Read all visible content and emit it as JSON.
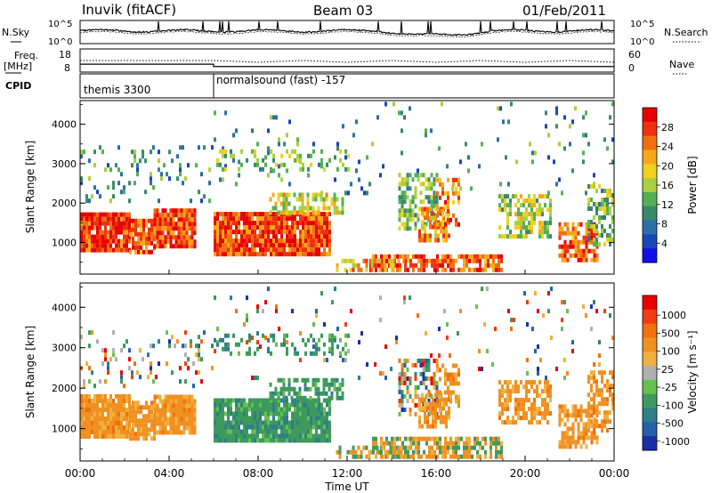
{
  "header": {
    "station": "Inuvik (fitACF)",
    "beam": "Beam 03",
    "date": "01/Feb/2011"
  },
  "side_labels": {
    "nsky": "N.Sky",
    "freq": "Freq.",
    "mhz": "[MHz]",
    "cpid": "CPID",
    "nsearch": "N.Search",
    "nave": "Nave"
  },
  "cpid_labels": [
    {
      "label": "themis 3300",
      "start_hour": 0
    },
    {
      "label": "normalsound (fast) -157",
      "start_hour": 6
    }
  ],
  "chart_data": [
    {
      "type": "line",
      "name": "noise",
      "y_ticks_left": [
        "10^5",
        "10^0"
      ],
      "y_ticks_right": [
        "10^5",
        "10^0"
      ],
      "series": [
        {
          "name": "N.Sky",
          "style": "solid"
        },
        {
          "name": "N.Search",
          "style": "dotted"
        }
      ]
    },
    {
      "type": "line",
      "name": "frequency",
      "y_ticks_left": [
        18,
        8
      ],
      "y_ticks_right": [
        60,
        0
      ],
      "freq_segments": [
        {
          "x0": 0,
          "x1": 6,
          "mhz": 11.4
        },
        {
          "x0": 6,
          "x1": 24,
          "mhz": 10.4
        }
      ],
      "nave_level": 30
    },
    {
      "type": "heatmap",
      "name": "power",
      "ylabel": "Slant Range [km]",
      "xlim": [
        0,
        24
      ],
      "ylim": [
        200,
        4600
      ],
      "y_ticks": [
        1000,
        2000,
        3000,
        4000
      ],
      "colorbar_label": "Power [dB]",
      "colorbar_ticks": [
        4,
        8,
        12,
        16,
        20,
        24,
        28
      ],
      "colorbar_colors": [
        "#1010e8",
        "#1848b8",
        "#2e6ea8",
        "#3a8a6a",
        "#55b055",
        "#a8d040",
        "#f0d020",
        "#f5a818",
        "#f07010",
        "#f03010",
        "#e80000"
      ],
      "colorbar_range": [
        0,
        32
      ]
    },
    {
      "type": "heatmap",
      "name": "velocity",
      "ylabel": "Slant Range [km]",
      "xlabel": "Time UT",
      "xlim": [
        0,
        24
      ],
      "ylim": [
        200,
        4600
      ],
      "y_ticks": [
        1000,
        2000,
        3000,
        4000
      ],
      "x_tick_labels": [
        "00:00",
        "04:00",
        "08:00",
        "12:00",
        "16:00",
        "20:00",
        "00:00"
      ],
      "colorbar_label": "Velocity [m s⁻¹]",
      "colorbar_ticks": [
        "1000",
        "500",
        "100",
        "25",
        "-25",
        "-100",
        "-500",
        "-1000"
      ],
      "colorbar_colors": [
        "#1a2ea8",
        "#2560a8",
        "#2f7f88",
        "#3d9a5c",
        "#66c050",
        "#b0b0b0",
        "#f0b040",
        "#f09020",
        "#f07010",
        "#f03c10",
        "#e80000"
      ]
    }
  ]
}
